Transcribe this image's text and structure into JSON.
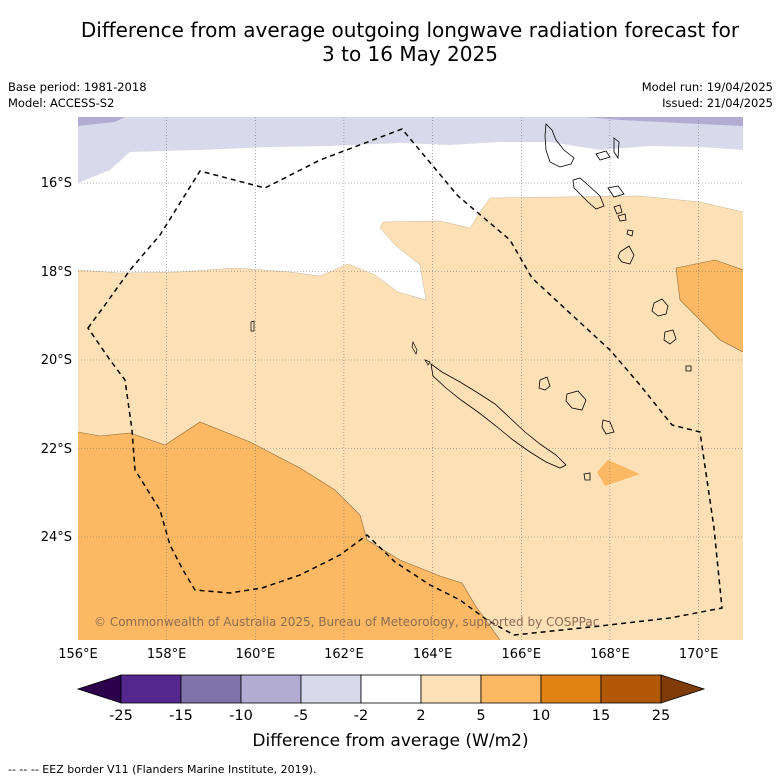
{
  "title_line1": "Difference from average outgoing longwave radiation forecast for",
  "title_line2": "3 to 16 May 2025",
  "base_period": "Base period: 1981-2018",
  "model": "Model: ACCESS-S2",
  "model_run": "Model run: 19/04/2025",
  "issued": "Issued: 21/04/2025",
  "lat_labels": [
    "16°S",
    "18°S",
    "20°S",
    "22°S",
    "24°S"
  ],
  "lon_labels": [
    "156°E",
    "158°E",
    "160°E",
    "162°E",
    "164°E",
    "166°E",
    "168°E",
    "170°E"
  ],
  "copyright": "© Commonwealth of Australia 2025, Bureau of Meteorology, supported by COSPPac",
  "colorbar": {
    "tick_labels": [
      "-25",
      "-15",
      "-10",
      "-5",
      "-2",
      "2",
      "5",
      "10",
      "15",
      "25"
    ],
    "colors": [
      "#54278f",
      "#8073ac",
      "#b2abd2",
      "#d8daeb",
      "#ffffff",
      "#fde0b6",
      "#fdb863",
      "#e08214",
      "#b35806"
    ],
    "under_color": "#2d004b",
    "over_color": "#7f3b08",
    "label": "Difference from average (W/m2)"
  },
  "legend_text": "--  --  -- EEZ border V11 (Flanders Marine Institute, 2019)."
}
